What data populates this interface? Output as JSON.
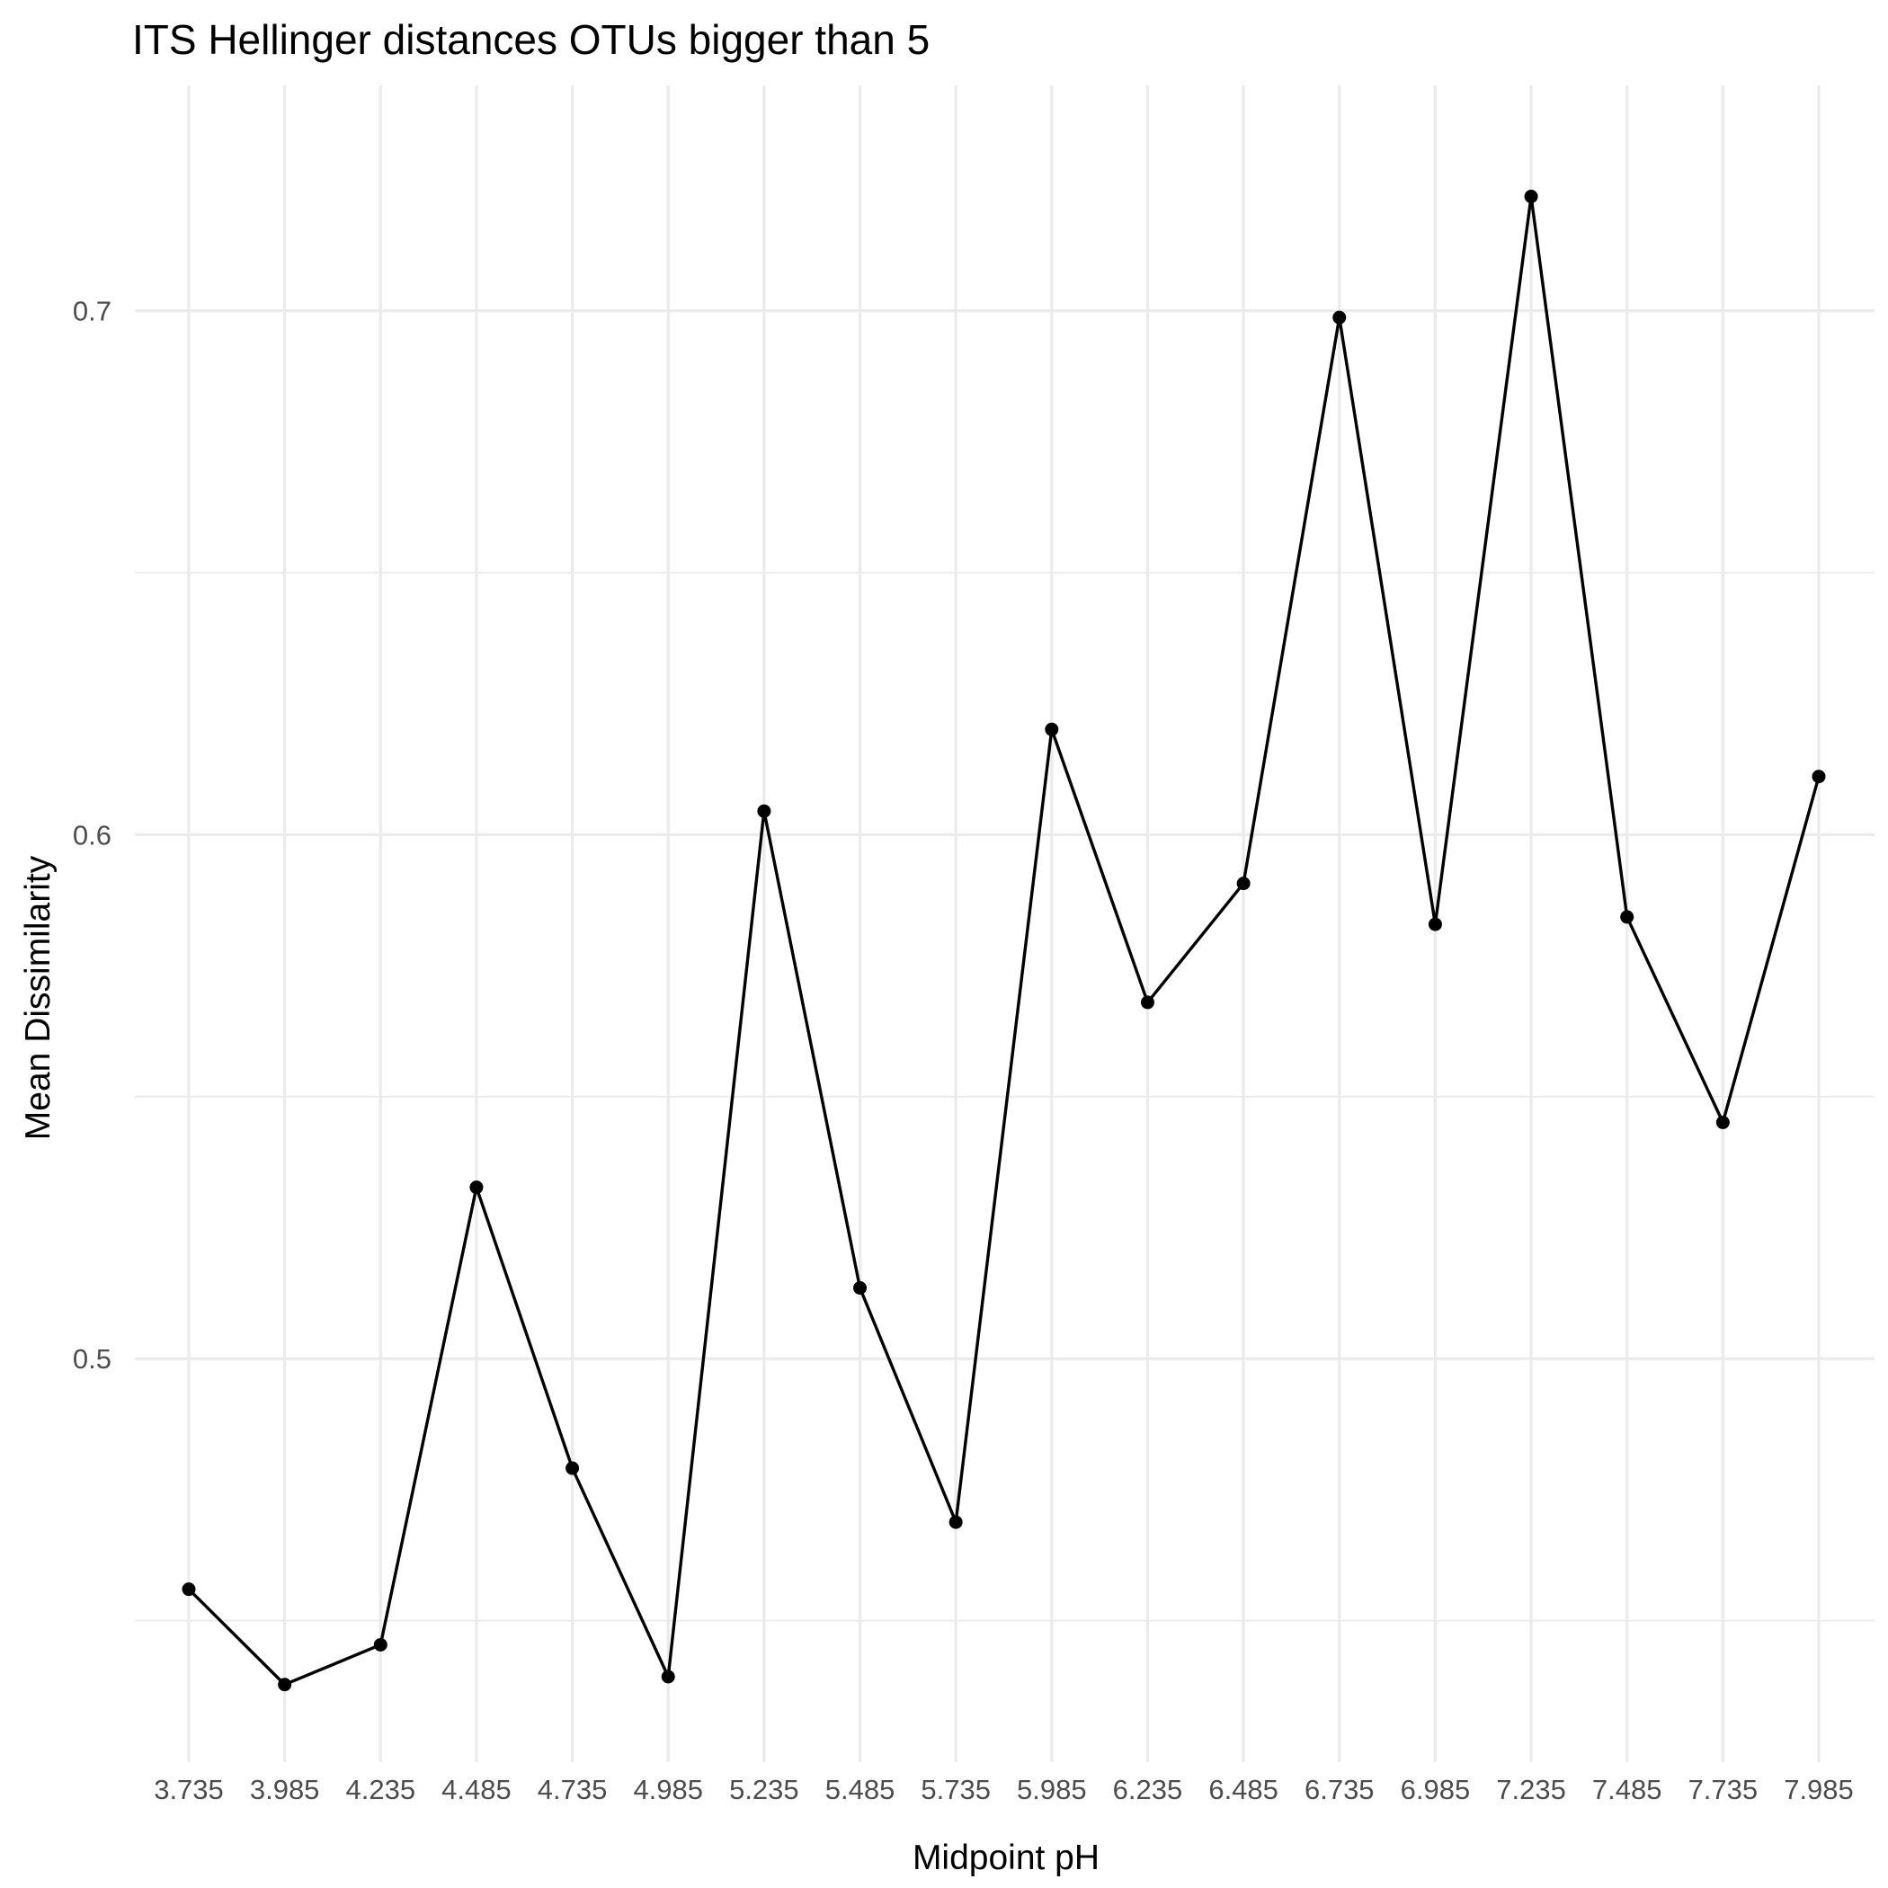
{
  "chart_data": {
    "type": "line",
    "title": "ITS Hellinger distances OTUs bigger than 5",
    "xlabel": "Midpoint pH",
    "ylabel": "Mean Dissimilarity",
    "categories": [
      "3.735",
      "3.985",
      "4.235",
      "4.485",
      "4.735",
      "4.985",
      "5.235",
      "5.485",
      "5.735",
      "5.985",
      "6.235",
      "6.485",
      "6.735",
      "6.985",
      "7.235",
      "7.485",
      "7.735",
      "7.985"
    ],
    "series": [
      {
        "values": [
          0.456,
          0.4378,
          0.4454,
          0.5327,
          0.4791,
          0.4393,
          0.6045,
          0.5135,
          0.4688,
          0.6201,
          0.568,
          0.5907,
          0.6987,
          0.5829,
          0.7218,
          0.5843,
          0.5451,
          0.6111
        ]
      }
    ],
    "yticks": [
      "0.5",
      "0.6",
      "0.7"
    ],
    "ylim": [
      0.423,
      0.743
    ],
    "grid": true,
    "style": {
      "line_color": "#000000",
      "grid_color": "#ebebeb",
      "tick_color": "#4d4d4d",
      "background": "#ffffff"
    }
  }
}
